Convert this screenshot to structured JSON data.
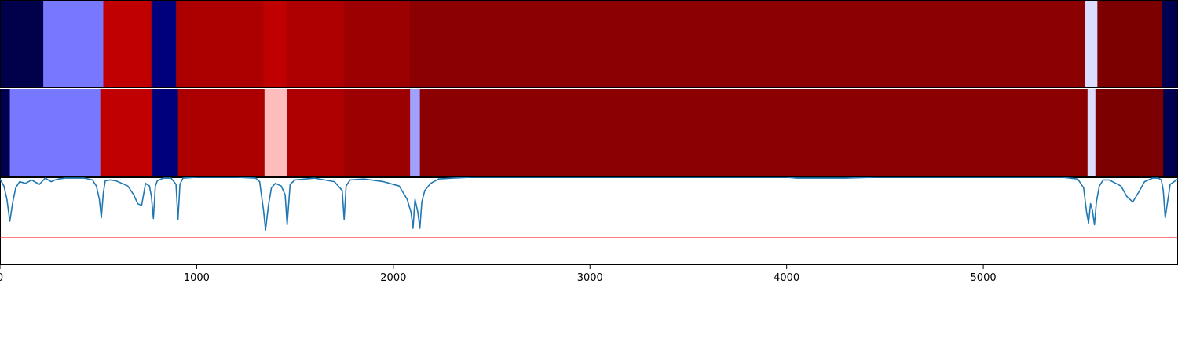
{
  "chart_data": {
    "type": "heatmap",
    "x_range": [
      0,
      5990
    ],
    "x_ticks": [
      0,
      1000,
      2000,
      3000,
      4000,
      5000
    ],
    "x_tick_labels": [
      "0",
      "1000",
      "2000",
      "3000",
      "4000",
      "5000"
    ],
    "y_range_line": [
      0,
      1
    ],
    "colormap": "seismic",
    "heatmap_rows": [
      {
        "segments": [
          {
            "x0": 0,
            "x1": 220,
            "color": "#00004b"
          },
          {
            "x0": 220,
            "x1": 525,
            "color": "#7878ff"
          },
          {
            "x0": 525,
            "x1": 770,
            "color": "#c00000"
          },
          {
            "x0": 770,
            "x1": 895,
            "color": "#00007c"
          },
          {
            "x0": 895,
            "x1": 1340,
            "color": "#ac0000"
          },
          {
            "x0": 1340,
            "x1": 1455,
            "color": "#c00000"
          },
          {
            "x0": 1455,
            "x1": 1750,
            "color": "#ae0000"
          },
          {
            "x0": 1750,
            "x1": 2085,
            "color": "#9d0000"
          },
          {
            "x0": 2085,
            "x1": 5515,
            "color": "#8b0000"
          },
          {
            "x0": 5515,
            "x1": 5580,
            "color": "#dcdcff"
          },
          {
            "x0": 5580,
            "x1": 5910,
            "color": "#7c0000"
          },
          {
            "x0": 5910,
            "x1": 5990,
            "color": "#000050"
          }
        ]
      },
      {
        "segments": [
          {
            "x0": 0,
            "x1": 50,
            "color": "#000050"
          },
          {
            "x0": 50,
            "x1": 510,
            "color": "#7878ff"
          },
          {
            "x0": 510,
            "x1": 775,
            "color": "#c00000"
          },
          {
            "x0": 775,
            "x1": 905,
            "color": "#00007c"
          },
          {
            "x0": 905,
            "x1": 1345,
            "color": "#ac0000"
          },
          {
            "x0": 1345,
            "x1": 1460,
            "color": "#ffbcbc"
          },
          {
            "x0": 1460,
            "x1": 1750,
            "color": "#ae0000"
          },
          {
            "x0": 1750,
            "x1": 2085,
            "color": "#9d0000"
          },
          {
            "x0": 2085,
            "x1": 2135,
            "color": "#a0a0ff"
          },
          {
            "x0": 2135,
            "x1": 5530,
            "color": "#8b0000"
          },
          {
            "x0": 5530,
            "x1": 5570,
            "color": "#dcdcff"
          },
          {
            "x0": 5570,
            "x1": 5915,
            "color": "#7c0000"
          },
          {
            "x0": 5915,
            "x1": 5990,
            "color": "#000050"
          }
        ]
      }
    ],
    "line_series": {
      "color": "#1f77b4",
      "x": [
        0,
        20,
        35,
        50,
        65,
        80,
        100,
        130,
        160,
        200,
        230,
        260,
        280,
        300,
        330,
        380,
        430,
        470,
        490,
        505,
        515,
        525,
        535,
        560,
        590,
        620,
        650,
        680,
        700,
        720,
        740,
        760,
        770,
        780,
        790,
        800,
        830,
        870,
        895,
        905,
        915,
        930,
        1000,
        1100,
        1200,
        1300,
        1320,
        1340,
        1350,
        1365,
        1380,
        1400,
        1430,
        1450,
        1460,
        1475,
        1500,
        1600,
        1700,
        1740,
        1750,
        1760,
        1780,
        1850,
        1950,
        2030,
        2070,
        2090,
        2100,
        2110,
        2125,
        2135,
        2145,
        2160,
        2190,
        2230,
        2300,
        2400,
        2500,
        3000,
        3500,
        4000,
        4050,
        4150,
        4300,
        4450,
        4600,
        5000,
        5400,
        5480,
        5510,
        5525,
        5535,
        5545,
        5555,
        5565,
        5575,
        5590,
        5610,
        5640,
        5700,
        5730,
        5760,
        5790,
        5820,
        5860,
        5890,
        5905,
        5915,
        5925,
        5950,
        5990
      ],
      "y": [
        0.98,
        0.9,
        0.75,
        0.5,
        0.72,
        0.88,
        0.95,
        0.93,
        0.97,
        0.92,
        0.99,
        0.95,
        0.97,
        0.98,
        0.99,
        0.99,
        0.99,
        0.97,
        0.9,
        0.75,
        0.54,
        0.82,
        0.96,
        0.97,
        0.96,
        0.93,
        0.9,
        0.8,
        0.7,
        0.68,
        0.93,
        0.9,
        0.78,
        0.53,
        0.9,
        0.96,
        0.99,
        0.99,
        0.92,
        0.52,
        0.92,
        0.99,
        1.0,
        1.0,
        1.0,
        0.99,
        0.95,
        0.62,
        0.4,
        0.68,
        0.88,
        0.93,
        0.9,
        0.8,
        0.46,
        0.92,
        0.97,
        0.99,
        0.95,
        0.85,
        0.52,
        0.9,
        0.97,
        0.98,
        0.95,
        0.9,
        0.75,
        0.6,
        0.42,
        0.75,
        0.6,
        0.42,
        0.72,
        0.85,
        0.93,
        0.98,
        0.99,
        1.0,
        1.0,
        1.0,
        1.0,
        1.0,
        0.99,
        0.99,
        0.99,
        1.0,
        1.0,
        1.0,
        1.0,
        0.98,
        0.88,
        0.6,
        0.48,
        0.7,
        0.62,
        0.46,
        0.72,
        0.9,
        0.97,
        0.97,
        0.9,
        0.78,
        0.72,
        0.83,
        0.95,
        0.99,
        0.99,
        0.97,
        0.85,
        0.54,
        0.92,
        0.98,
        1.0
      ]
    },
    "threshold_line": {
      "y": 0.31,
      "color": "#ff0000"
    }
  }
}
